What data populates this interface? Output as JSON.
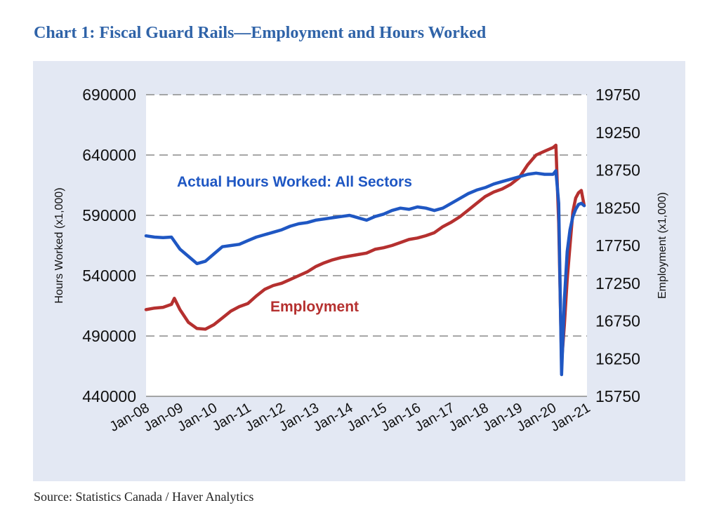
{
  "title": "Chart 1: Fiscal Guard Rails—Employment and Hours Worked",
  "source": "Source: Statistics Canada / Haver Analytics",
  "colors": {
    "hours": "#1f57c3",
    "employment": "#b5302f",
    "panel": "#e3e8f3",
    "title": "#2f63a8"
  },
  "chart_data": {
    "type": "line",
    "grid": "dashed horizontal",
    "xlabel": "",
    "x_ticks": [
      "Jan-08",
      "Jan-09",
      "Jan-10",
      "Jan-11",
      "Jan-12",
      "Jan-13",
      "Jan-14",
      "Jan-15",
      "Jan-16",
      "Jan-17",
      "Jan-18",
      "Jan-19",
      "Jan-20",
      "Jan-21"
    ],
    "y_left": {
      "label": "Hours Worked (x1,000)",
      "ticks": [
        "690000",
        "640000",
        "590000",
        "540000",
        "490000",
        "440000"
      ],
      "range": [
        440000,
        690000
      ]
    },
    "y_right": {
      "label": "Employment (x1,000)",
      "ticks": [
        "19750",
        "19250",
        "18750",
        "18250",
        "17750",
        "17250",
        "16750",
        "16250",
        "15750"
      ],
      "range": [
        15750,
        19750
      ]
    },
    "series": [
      {
        "name": "Actual Hours Worked: All Sectors",
        "axis": "left",
        "color": "#1f57c3",
        "points": [
          [
            "Jan-08",
            573000
          ],
          [
            "Apr-08",
            572000
          ],
          [
            "Jul-08",
            571500
          ],
          [
            "Oct-08",
            572000
          ],
          [
            "Jan-09",
            562000
          ],
          [
            "Apr-09",
            556000
          ],
          [
            "Jul-09",
            550000
          ],
          [
            "Oct-09",
            552000
          ],
          [
            "Jan-10",
            558000
          ],
          [
            "Apr-10",
            564000
          ],
          [
            "Jul-10",
            565000
          ],
          [
            "Oct-10",
            566000
          ],
          [
            "Jan-11",
            569000
          ],
          [
            "Apr-11",
            572000
          ],
          [
            "Jul-11",
            574000
          ],
          [
            "Oct-11",
            576000
          ],
          [
            "Jan-12",
            578000
          ],
          [
            "Apr-12",
            581000
          ],
          [
            "Jul-12",
            583000
          ],
          [
            "Oct-12",
            584000
          ],
          [
            "Jan-13",
            586000
          ],
          [
            "Apr-13",
            587000
          ],
          [
            "Jul-13",
            588000
          ],
          [
            "Oct-13",
            589000
          ],
          [
            "Jan-14",
            590000
          ],
          [
            "Apr-14",
            588000
          ],
          [
            "Jul-14",
            586000
          ],
          [
            "Oct-14",
            589000
          ],
          [
            "Jan-15",
            591000
          ],
          [
            "Apr-15",
            594000
          ],
          [
            "Jul-15",
            596000
          ],
          [
            "Oct-15",
            595000
          ],
          [
            "Jan-16",
            597000
          ],
          [
            "Apr-16",
            596000
          ],
          [
            "Jul-16",
            594000
          ],
          [
            "Oct-16",
            596000
          ],
          [
            "Jan-17",
            600000
          ],
          [
            "Apr-17",
            604000
          ],
          [
            "Jul-17",
            608000
          ],
          [
            "Oct-17",
            611000
          ],
          [
            "Jan-18",
            613000
          ],
          [
            "Apr-18",
            616000
          ],
          [
            "Jul-18",
            618000
          ],
          [
            "Oct-18",
            620000
          ],
          [
            "Jan-19",
            622000
          ],
          [
            "Apr-19",
            624000
          ],
          [
            "Jul-19",
            625000
          ],
          [
            "Oct-19",
            624000
          ],
          [
            "Jan-20",
            624000
          ],
          [
            "Feb-20",
            627000
          ],
          [
            "Mar-20",
            600000
          ],
          [
            "Apr-20",
            458000
          ],
          [
            "May-20",
            520000
          ],
          [
            "Jun-20",
            560000
          ],
          [
            "Jul-20",
            578000
          ],
          [
            "Aug-20",
            589000
          ],
          [
            "Sep-20",
            595000
          ],
          [
            "Oct-20",
            599000
          ],
          [
            "Nov-20",
            600000
          ],
          [
            "Dec-20",
            598000
          ]
        ]
      },
      {
        "name": "Employment",
        "axis": "right",
        "color": "#b5302f",
        "points": [
          [
            "Jan-08",
            16900
          ],
          [
            "Apr-08",
            16920
          ],
          [
            "Jul-08",
            16930
          ],
          [
            "Oct-08",
            16970
          ],
          [
            "Nov-08",
            17050
          ],
          [
            "Jan-09",
            16900
          ],
          [
            "Apr-09",
            16730
          ],
          [
            "Jul-09",
            16650
          ],
          [
            "Oct-09",
            16640
          ],
          [
            "Jan-10",
            16700
          ],
          [
            "Apr-10",
            16790
          ],
          [
            "Jul-10",
            16880
          ],
          [
            "Oct-10",
            16940
          ],
          [
            "Jan-11",
            16980
          ],
          [
            "Apr-11",
            17080
          ],
          [
            "Jul-11",
            17170
          ],
          [
            "Oct-11",
            17220
          ],
          [
            "Jan-12",
            17250
          ],
          [
            "Apr-12",
            17300
          ],
          [
            "Jul-12",
            17350
          ],
          [
            "Oct-12",
            17400
          ],
          [
            "Jan-13",
            17470
          ],
          [
            "Apr-13",
            17520
          ],
          [
            "Jul-13",
            17560
          ],
          [
            "Oct-13",
            17590
          ],
          [
            "Jan-14",
            17610
          ],
          [
            "Apr-14",
            17630
          ],
          [
            "Jul-14",
            17650
          ],
          [
            "Oct-14",
            17700
          ],
          [
            "Jan-15",
            17720
          ],
          [
            "Apr-15",
            17750
          ],
          [
            "Jul-15",
            17790
          ],
          [
            "Oct-15",
            17830
          ],
          [
            "Jan-16",
            17850
          ],
          [
            "Apr-16",
            17880
          ],
          [
            "Jul-16",
            17920
          ],
          [
            "Oct-16",
            18000
          ],
          [
            "Jan-17",
            18060
          ],
          [
            "Apr-17",
            18130
          ],
          [
            "Jul-17",
            18220
          ],
          [
            "Oct-17",
            18310
          ],
          [
            "Jan-18",
            18400
          ],
          [
            "Apr-18",
            18460
          ],
          [
            "Jul-18",
            18500
          ],
          [
            "Oct-18",
            18560
          ],
          [
            "Jan-19",
            18650
          ],
          [
            "Apr-19",
            18820
          ],
          [
            "Jul-19",
            18950
          ],
          [
            "Oct-19",
            19000
          ],
          [
            "Jan-20",
            19050
          ],
          [
            "Feb-20",
            19080
          ],
          [
            "Mar-20",
            18050
          ],
          [
            "Apr-20",
            16200
          ],
          [
            "May-20",
            16700
          ],
          [
            "Jun-20",
            17300
          ],
          [
            "Jul-20",
            17750
          ],
          [
            "Aug-20",
            18200
          ],
          [
            "Sep-20",
            18380
          ],
          [
            "Oct-20",
            18450
          ],
          [
            "Nov-20",
            18480
          ],
          [
            "Dec-20",
            18280
          ]
        ]
      }
    ],
    "annotations": [
      {
        "text": "Actual Hours Worked: All Sectors",
        "series": 0
      },
      {
        "text": "Employment",
        "series": 1
      }
    ]
  }
}
